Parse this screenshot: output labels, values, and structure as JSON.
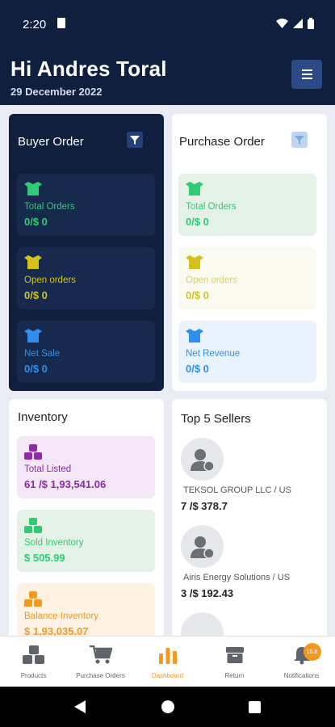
{
  "status_bar": {
    "time": "2:20"
  },
  "header": {
    "greeting": "Hi Andres Toral",
    "date": "29 December 2022"
  },
  "buyer_order": {
    "title": "Buyer Order",
    "tiles": [
      {
        "label": "Total Orders",
        "value": "0/$ 0"
      },
      {
        "label": "Open orders",
        "value": "0/$ 0"
      },
      {
        "label": "Net Sale",
        "value": "0/$ 0"
      }
    ]
  },
  "purchase_order": {
    "title": "Purchase Order",
    "tiles": [
      {
        "label": "Total Orders",
        "value": "0/$ 0"
      },
      {
        "label": "Open orders",
        "value": "0/$ 0"
      },
      {
        "label": "Net Revenue",
        "value": "0/$ 0"
      }
    ]
  },
  "inventory": {
    "title": "Inventory",
    "tiles": [
      {
        "label": "Total Listed",
        "value": "61 /$ 1,93,541.06"
      },
      {
        "label": "Sold Inventory",
        "value": "$ 505.99"
      },
      {
        "label": "Balance Inventory",
        "value": "$ 1,93,035.07"
      }
    ]
  },
  "top_sellers": {
    "title": "Top 5 Sellers",
    "items": [
      {
        "name": "TEKSOL GROUP LLC / US",
        "value": "7 /$ 378.7"
      },
      {
        "name": "Airis Energy Solutions / US",
        "value": "3 /$ 192.43"
      }
    ]
  },
  "bottom_nav": {
    "items": [
      {
        "label": "Products",
        "icon": "boxes-icon"
      },
      {
        "label": "Purchase Orders",
        "icon": "cart-icon"
      },
      {
        "label": "Dashboard",
        "icon": "bar-chart-icon"
      },
      {
        "label": "Return",
        "icon": "box-icon"
      },
      {
        "label": "Notifications",
        "icon": "bell-icon"
      }
    ],
    "notification_badge": "15.8"
  },
  "colors": {
    "navy": "#0f1f3d",
    "green": "#2ecc71",
    "yellow": "#d4c21a",
    "blue": "#2f8ff0",
    "purple": "#8e2aa6",
    "orange": "#f39a1e",
    "active_nav": "#f39a1e"
  }
}
